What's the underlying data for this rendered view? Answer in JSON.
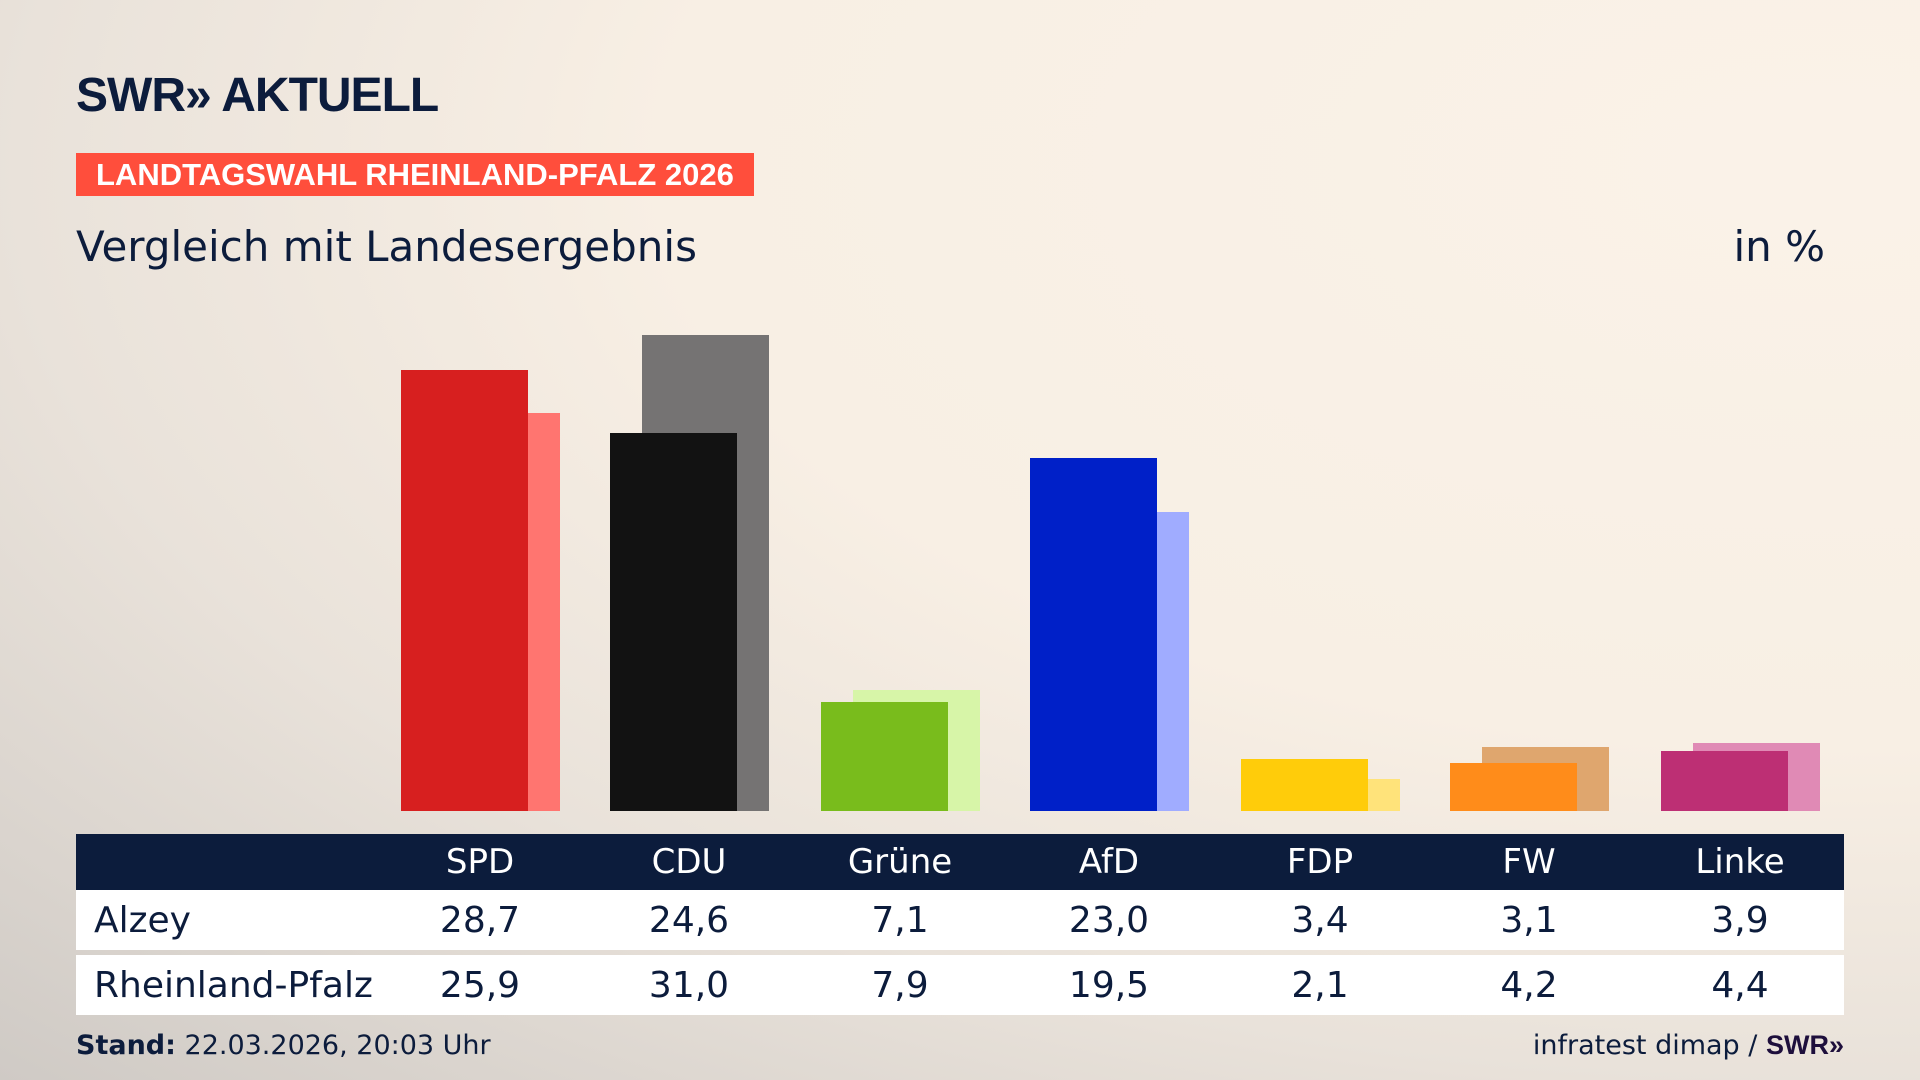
{
  "header": {
    "logo": "SWR» AKTUELL",
    "tag": "LANDTAGSWAHL RHEINLAND-PFALZ 2026",
    "subtitle": "Vergleich mit Landesergebnis",
    "unit": "in %"
  },
  "chart_data": {
    "type": "bar",
    "title": "Vergleich mit Landesergebnis",
    "ylabel": "in %",
    "categories": [
      "SPD",
      "CDU",
      "Grüne",
      "AfD",
      "FDP",
      "FW",
      "Linke"
    ],
    "series": [
      {
        "name": "Alzey",
        "values": [
          28.7,
          24.6,
          7.1,
          23.0,
          3.4,
          3.1,
          3.9
        ],
        "display": [
          "28,7",
          "24,6",
          "7,1",
          "23,0",
          "3,4",
          "3,1",
          "3,9"
        ]
      },
      {
        "name": "Rheinland-Pfalz",
        "values": [
          25.9,
          31.0,
          7.9,
          19.5,
          2.1,
          4.2,
          4.4
        ],
        "display": [
          "25,9",
          "31,0",
          "7,9",
          "19,5",
          "2,1",
          "4,2",
          "4,4"
        ]
      }
    ],
    "colors": {
      "primary": [
        "#d71f1f",
        "#121212",
        "#79bc1c",
        "#0020c8",
        "#ffcc0a",
        "#ff8c1a",
        "#bd2f74"
      ],
      "secondary": [
        "#ff7570",
        "#757373",
        "#d7f5a8",
        "#a0acff",
        "#ffe37a",
        "#dfa66e",
        "#e08ab5"
      ]
    },
    "grid": false,
    "legend": "table-below"
  },
  "footer": {
    "stand_label": "Stand:",
    "stand_value": "22.03.2026, 20:03 Uhr",
    "source": "infratest dimap /",
    "source_logo": "SWR»"
  }
}
